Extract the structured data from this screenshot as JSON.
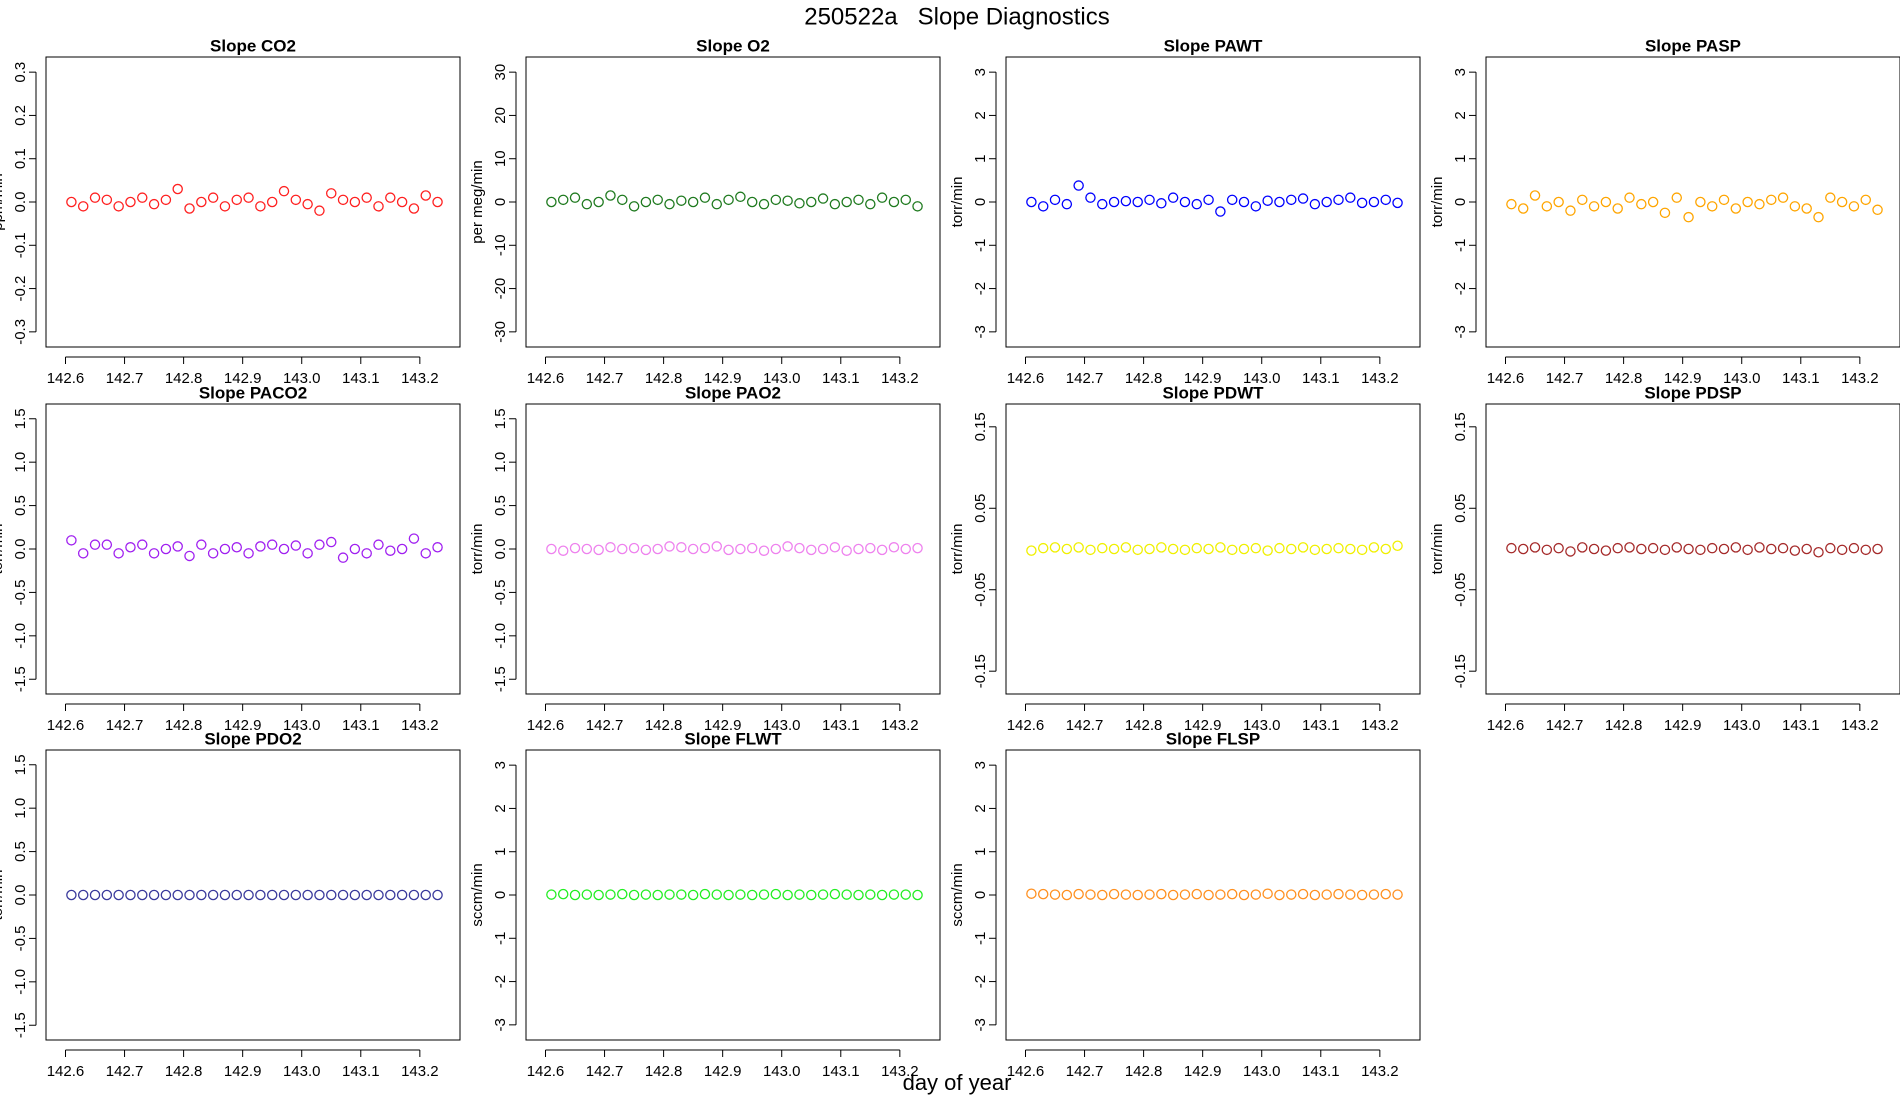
{
  "title": "250522a   Slope Diagnostics",
  "xlabel": "day of year",
  "chart_data": [
    {
      "type": "scatter",
      "title": "Slope CO2",
      "ylabel": "ppm/min",
      "color": "#ff2020",
      "x": [
        142.61,
        142.63,
        142.65,
        142.67,
        142.69,
        142.71,
        142.73,
        142.75,
        142.77,
        142.79,
        142.81,
        142.83,
        142.85,
        142.87,
        142.89,
        142.91,
        142.93,
        142.95,
        142.97,
        142.99,
        143.01,
        143.03,
        143.05,
        143.07,
        143.09,
        143.11,
        143.13,
        143.15,
        143.17,
        143.19,
        143.21,
        143.23
      ],
      "values": [
        0,
        -0.01,
        0.01,
        0.005,
        -0.01,
        0,
        0.01,
        -0.005,
        0.005,
        0.03,
        -0.015,
        0,
        0.01,
        -0.01,
        0.005,
        0.01,
        -0.01,
        0,
        0.025,
        0.005,
        -0.005,
        -0.02,
        0.02,
        0.005,
        0,
        0.01,
        -0.01,
        0.01,
        0,
        -0.015,
        0.015,
        0
      ],
      "xlim": [
        142.567,
        143.268
      ],
      "xticks": [
        142.6,
        142.7,
        142.8,
        142.9,
        {
          "value": 143,
          "label": "143.0"
        },
        143.1,
        143.2
      ],
      "ylim": [
        -0.335,
        0.335
      ],
      "yticks": [
        -0.3,
        -0.2,
        -0.1,
        {
          "value": 0,
          "label": "0.0"
        },
        0.1,
        0.2,
        0.3
      ]
    },
    {
      "type": "scatter",
      "title": "Slope O2",
      "ylabel": "per meg/min",
      "color": "#1f7a1f",
      "x": [
        142.61,
        142.63,
        142.65,
        142.67,
        142.69,
        142.71,
        142.73,
        142.75,
        142.77,
        142.79,
        142.81,
        142.83,
        142.85,
        142.87,
        142.89,
        142.91,
        142.93,
        142.95,
        142.97,
        142.99,
        143.01,
        143.03,
        143.05,
        143.07,
        143.09,
        143.11,
        143.13,
        143.15,
        143.17,
        143.19,
        143.21,
        143.23
      ],
      "values": [
        0,
        0.5,
        1,
        -0.5,
        0,
        1.5,
        0.5,
        -1,
        0,
        0.5,
        -0.5,
        0.3,
        0,
        1,
        -0.5,
        0.5,
        1.2,
        0,
        -0.5,
        0.5,
        0.3,
        -0.3,
        0,
        0.8,
        -0.5,
        0,
        0.5,
        -0.5,
        1,
        0,
        0.5,
        -1
      ],
      "xlim": [
        142.567,
        143.268
      ],
      "xticks": [
        142.6,
        142.7,
        142.8,
        142.9,
        {
          "value": 143,
          "label": "143.0"
        },
        143.1,
        143.2
      ],
      "ylim": [
        -33.5,
        33.5
      ],
      "yticks": [
        -30,
        -20,
        -10,
        0,
        10,
        20,
        30
      ]
    },
    {
      "type": "scatter",
      "title": "Slope PAWT",
      "ylabel": "torr/min",
      "color": "#0000ff",
      "x": [
        142.61,
        142.63,
        142.65,
        142.67,
        142.69,
        142.71,
        142.73,
        142.75,
        142.77,
        142.79,
        142.81,
        142.83,
        142.85,
        142.87,
        142.89,
        142.91,
        142.93,
        142.95,
        142.97,
        142.99,
        143.01,
        143.03,
        143.05,
        143.07,
        143.09,
        143.11,
        143.13,
        143.15,
        143.17,
        143.19,
        143.21,
        143.23
      ],
      "values": [
        0,
        -0.1,
        0.05,
        -0.05,
        0.38,
        0.1,
        -0.05,
        0,
        0.02,
        0,
        0.05,
        -0.03,
        0.1,
        0,
        -0.05,
        0.05,
        -0.22,
        0.05,
        0,
        -0.1,
        0.03,
        0,
        0.05,
        0.08,
        -0.05,
        0,
        0.05,
        0.1,
        -0.02,
        0,
        0.05,
        -0.02
      ],
      "xlim": [
        142.567,
        143.268
      ],
      "xticks": [
        142.6,
        142.7,
        142.8,
        142.9,
        {
          "value": 143,
          "label": "143.0"
        },
        143.1,
        143.2
      ],
      "ylim": [
        -3.35,
        3.35
      ],
      "yticks": [
        -3,
        -2,
        -1,
        0,
        1,
        2,
        3
      ]
    },
    {
      "type": "scatter",
      "title": "Slope PASP",
      "ylabel": "torr/min",
      "color": "#ffa500",
      "x": [
        142.61,
        142.63,
        142.65,
        142.67,
        142.69,
        142.71,
        142.73,
        142.75,
        142.77,
        142.79,
        142.81,
        142.83,
        142.85,
        142.87,
        142.89,
        142.91,
        142.93,
        142.95,
        142.97,
        142.99,
        143.01,
        143.03,
        143.05,
        143.07,
        143.09,
        143.11,
        143.13,
        143.15,
        143.17,
        143.19,
        143.21,
        143.23
      ],
      "values": [
        -0.05,
        -0.15,
        0.15,
        -0.1,
        0,
        -0.2,
        0.05,
        -0.1,
        0,
        -0.15,
        0.1,
        -0.05,
        0,
        -0.25,
        0.1,
        -0.35,
        0,
        -0.1,
        0.05,
        -0.15,
        0,
        -0.05,
        0.05,
        0.1,
        -0.1,
        -0.15,
        -0.35,
        0.1,
        0,
        -0.1,
        0.05,
        -0.18
      ],
      "xlim": [
        142.567,
        143.268
      ],
      "xticks": [
        142.6,
        142.7,
        142.8,
        142.9,
        {
          "value": 143,
          "label": "143.0"
        },
        143.1,
        143.2
      ],
      "ylim": [
        -3.35,
        3.35
      ],
      "yticks": [
        -3,
        -2,
        -1,
        0,
        1,
        2,
        3
      ]
    },
    {
      "type": "scatter",
      "title": "Slope PACO2",
      "ylabel": "torr/min",
      "color": "#a020f0",
      "x": [
        142.61,
        142.63,
        142.65,
        142.67,
        142.69,
        142.71,
        142.73,
        142.75,
        142.77,
        142.79,
        142.81,
        142.83,
        142.85,
        142.87,
        142.89,
        142.91,
        142.93,
        142.95,
        142.97,
        142.99,
        143.01,
        143.03,
        143.05,
        143.07,
        143.09,
        143.11,
        143.13,
        143.15,
        143.17,
        143.19,
        143.21,
        143.23
      ],
      "values": [
        0.1,
        -0.05,
        0.05,
        0.05,
        -0.05,
        0.02,
        0.05,
        -0.05,
        0,
        0.03,
        -0.08,
        0.05,
        -0.05,
        0,
        0.02,
        -0.05,
        0.03,
        0.05,
        0,
        0.04,
        -0.05,
        0.05,
        0.08,
        -0.1,
        0,
        -0.05,
        0.05,
        -0.02,
        0,
        0.12,
        -0.05,
        0.02
      ],
      "xlim": [
        142.567,
        143.268
      ],
      "xticks": [
        142.6,
        142.7,
        142.8,
        142.9,
        {
          "value": 143,
          "label": "143.0"
        },
        143.1,
        143.2
      ],
      "ylim": [
        -1.67,
        1.67
      ],
      "yticks": [
        -1.5,
        {
          "value": -1,
          "label": "-1.0"
        },
        -0.5,
        {
          "value": 0,
          "label": "0.0"
        },
        0.5,
        {
          "value": 1,
          "label": "1.0"
        },
        1.5
      ]
    },
    {
      "type": "scatter",
      "title": "Slope PAO2",
      "ylabel": "torr/min",
      "color": "#ee82ee",
      "x": [
        142.61,
        142.63,
        142.65,
        142.67,
        142.69,
        142.71,
        142.73,
        142.75,
        142.77,
        142.79,
        142.81,
        142.83,
        142.85,
        142.87,
        142.89,
        142.91,
        142.93,
        142.95,
        142.97,
        142.99,
        143.01,
        143.03,
        143.05,
        143.07,
        143.09,
        143.11,
        143.13,
        143.15,
        143.17,
        143.19,
        143.21,
        143.23
      ],
      "values": [
        0,
        -0.02,
        0.01,
        0,
        -0.01,
        0.02,
        0,
        0.01,
        -0.01,
        0,
        0.03,
        0.02,
        0,
        0.01,
        0.03,
        -0.01,
        0,
        0.01,
        -0.02,
        0,
        0.03,
        0.01,
        -0.01,
        0,
        0.02,
        -0.02,
        0,
        0.01,
        -0.01,
        0.02,
        0,
        0.01
      ],
      "xlim": [
        142.567,
        143.268
      ],
      "xticks": [
        142.6,
        142.7,
        142.8,
        142.9,
        {
          "value": 143,
          "label": "143.0"
        },
        143.1,
        143.2
      ],
      "ylim": [
        -1.67,
        1.67
      ],
      "yticks": [
        -1.5,
        {
          "value": -1,
          "label": "-1.0"
        },
        -0.5,
        {
          "value": 0,
          "label": "0.0"
        },
        0.5,
        {
          "value": 1,
          "label": "1.0"
        },
        1.5
      ]
    },
    {
      "type": "scatter",
      "title": "Slope PDWT",
      "ylabel": "torr/min",
      "color": "#f0f000",
      "x": [
        142.61,
        142.63,
        142.65,
        142.67,
        142.69,
        142.71,
        142.73,
        142.75,
        142.77,
        142.79,
        142.81,
        142.83,
        142.85,
        142.87,
        142.89,
        142.91,
        142.93,
        142.95,
        142.97,
        142.99,
        143.01,
        143.03,
        143.05,
        143.07,
        143.09,
        143.11,
        143.13,
        143.15,
        143.17,
        143.19,
        143.21,
        143.23
      ],
      "values": [
        -0.002,
        0.001,
        0.002,
        0,
        0.002,
        -0.001,
        0.001,
        0,
        0.002,
        -0.001,
        0,
        0.002,
        0,
        -0.001,
        0.001,
        0,
        0.002,
        -0.001,
        0,
        0.001,
        -0.002,
        0.001,
        0,
        0.002,
        -0.001,
        0,
        0.001,
        0,
        -0.001,
        0.002,
        0,
        0.004
      ],
      "xlim": [
        142.567,
        143.268
      ],
      "xticks": [
        142.6,
        142.7,
        142.8,
        142.9,
        {
          "value": 143,
          "label": "143.0"
        },
        143.1,
        143.2
      ],
      "ylim": [
        -0.178,
        0.178
      ],
      "yticks": [
        -0.15,
        -0.05,
        0.05,
        0.15
      ]
    },
    {
      "type": "scatter",
      "title": "Slope PDSP",
      "ylabel": "torr/min",
      "color": "#a52a2a",
      "x": [
        142.61,
        142.63,
        142.65,
        142.67,
        142.69,
        142.71,
        142.73,
        142.75,
        142.77,
        142.79,
        142.81,
        142.83,
        142.85,
        142.87,
        142.89,
        142.91,
        142.93,
        142.95,
        142.97,
        142.99,
        143.01,
        143.03,
        143.05,
        143.07,
        143.09,
        143.11,
        143.13,
        143.15,
        143.17,
        143.19,
        143.21,
        143.23
      ],
      "values": [
        0.001,
        0,
        0.002,
        -0.001,
        0.001,
        -0.003,
        0.002,
        0,
        -0.002,
        0.001,
        0.002,
        0,
        0.001,
        -0.001,
        0.002,
        0,
        -0.001,
        0.001,
        0,
        0.002,
        -0.001,
        0.002,
        0,
        0.001,
        -0.002,
        0,
        -0.004,
        0.001,
        -0.001,
        0.001,
        -0.001,
        0
      ],
      "xlim": [
        142.567,
        143.268
      ],
      "xticks": [
        142.6,
        142.7,
        142.8,
        142.9,
        {
          "value": 143,
          "label": "143.0"
        },
        143.1,
        143.2
      ],
      "ylim": [
        -0.178,
        0.178
      ],
      "yticks": [
        -0.15,
        -0.05,
        0.05,
        0.15
      ]
    },
    {
      "type": "scatter",
      "title": "Slope PDO2",
      "ylabel": "torr/min",
      "color": "#3a3a9c",
      "x": [
        142.61,
        142.63,
        142.65,
        142.67,
        142.69,
        142.71,
        142.73,
        142.75,
        142.77,
        142.79,
        142.81,
        142.83,
        142.85,
        142.87,
        142.89,
        142.91,
        142.93,
        142.95,
        142.97,
        142.99,
        143.01,
        143.03,
        143.05,
        143.07,
        143.09,
        143.11,
        143.13,
        143.15,
        143.17,
        143.19,
        143.21,
        143.23
      ],
      "values": [
        0,
        0,
        0,
        0,
        0,
        0,
        0,
        0,
        0,
        0,
        0,
        0,
        0,
        0,
        0,
        0,
        0,
        0,
        0,
        0,
        0,
        0,
        0,
        0,
        0,
        0,
        0,
        0,
        0,
        0,
        0,
        0
      ],
      "xlim": [
        142.567,
        143.268
      ],
      "xticks": [
        142.6,
        142.7,
        142.8,
        142.9,
        {
          "value": 143,
          "label": "143.0"
        },
        143.1,
        143.2
      ],
      "ylim": [
        -1.67,
        1.67
      ],
      "yticks": [
        -1.5,
        {
          "value": -1,
          "label": "-1.0"
        },
        -0.5,
        {
          "value": 0,
          "label": "0.0"
        },
        0.5,
        {
          "value": 1,
          "label": "1.0"
        },
        1.5
      ]
    },
    {
      "type": "scatter",
      "title": "Slope FLWT",
      "ylabel": "sccm/min",
      "color": "#22ee22",
      "x": [
        142.61,
        142.63,
        142.65,
        142.67,
        142.69,
        142.71,
        142.73,
        142.75,
        142.77,
        142.79,
        142.81,
        142.83,
        142.85,
        142.87,
        142.89,
        142.91,
        142.93,
        142.95,
        142.97,
        142.99,
        143.01,
        143.03,
        143.05,
        143.07,
        143.09,
        143.11,
        143.13,
        143.15,
        143.17,
        143.19,
        143.21,
        143.23
      ],
      "values": [
        0.01,
        0.02,
        0,
        0.01,
        0,
        0.01,
        0.02,
        0,
        0.01,
        0,
        0.01,
        0.01,
        0,
        0.02,
        0.01,
        0,
        0.01,
        0,
        0.01,
        0.02,
        0,
        0.01,
        0,
        0.01,
        0.02,
        0.01,
        0,
        0.01,
        0,
        0.01,
        0.01,
        0
      ],
      "xlim": [
        142.567,
        143.268
      ],
      "xticks": [
        142.6,
        142.7,
        142.8,
        142.9,
        {
          "value": 143,
          "label": "143.0"
        },
        143.1,
        143.2
      ],
      "ylim": [
        -3.35,
        3.35
      ],
      "yticks": [
        -3,
        -2,
        -1,
        0,
        1,
        2,
        3
      ]
    },
    {
      "type": "scatter",
      "title": "Slope FLSP",
      "ylabel": "sccm/min",
      "color": "#ff9020",
      "x": [
        142.61,
        142.63,
        142.65,
        142.67,
        142.69,
        142.71,
        142.73,
        142.75,
        142.77,
        142.79,
        142.81,
        142.83,
        142.85,
        142.87,
        142.89,
        142.91,
        142.93,
        142.95,
        142.97,
        142.99,
        143.01,
        143.03,
        143.05,
        143.07,
        143.09,
        143.11,
        143.13,
        143.15,
        143.17,
        143.19,
        143.21,
        143.23
      ],
      "values": [
        0.03,
        0.02,
        0.01,
        0,
        0.02,
        0.01,
        0,
        0.02,
        0.01,
        0,
        0.01,
        0.02,
        0,
        0.01,
        0.02,
        0,
        0.01,
        0.02,
        0,
        0.01,
        0.03,
        0,
        0.01,
        0.02,
        0,
        0.01,
        0.02,
        0.01,
        0,
        0.01,
        0.02,
        0.01
      ],
      "xlim": [
        142.567,
        143.268
      ],
      "xticks": [
        142.6,
        142.7,
        142.8,
        142.9,
        {
          "value": 143,
          "label": "143.0"
        },
        143.1,
        143.2
      ],
      "ylim": [
        -3.35,
        3.35
      ],
      "yticks": [
        -3,
        -2,
        -1,
        0,
        1,
        2,
        3
      ]
    }
  ]
}
